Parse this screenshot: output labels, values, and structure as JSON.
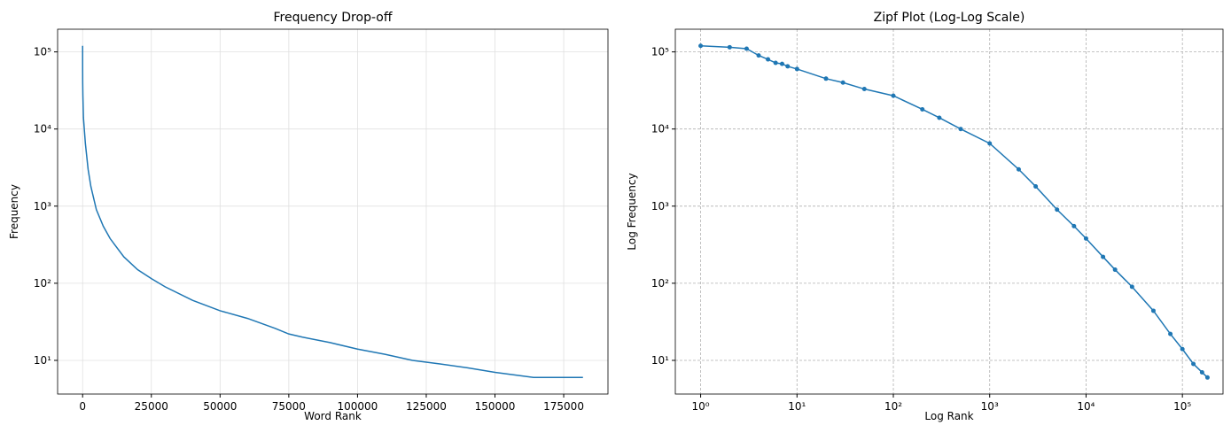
{
  "chart_data": [
    {
      "type": "line",
      "title": "Frequency Drop-off",
      "xlabel": "Word Rank",
      "ylabel": "Frequency",
      "color": "#1f77b4",
      "x": [
        1,
        2,
        3,
        5,
        10,
        30,
        100,
        300,
        1000,
        2000,
        3000,
        5000,
        7500,
        10000,
        15000,
        20000,
        25000,
        30000,
        40000,
        50000,
        60000,
        70000,
        75000,
        80000,
        90000,
        100000,
        110000,
        120000,
        130000,
        140000,
        150000,
        164000,
        182000
      ],
      "values": [
        120000,
        115000,
        110000,
        80000,
        60000,
        40000,
        27000,
        14000,
        6500,
        3000,
        1800,
        900,
        550,
        380,
        220,
        150,
        115,
        90,
        60,
        44,
        35,
        26,
        22,
        20,
        17,
        14,
        12,
        10,
        9,
        8,
        7,
        6,
        6
      ],
      "xlim": [
        -9100,
        191100
      ],
      "xticks": [
        0,
        25000,
        50000,
        75000,
        100000,
        125000,
        150000,
        175000
      ],
      "ylim": [
        3.66,
        196800
      ],
      "ylog": true,
      "yticks": [
        {
          "value": 10,
          "label": "10¹"
        },
        {
          "value": 100,
          "label": "10²"
        },
        {
          "value": 1000,
          "label": "10³"
        },
        {
          "value": 10000,
          "label": "10⁴"
        },
        {
          "value": 100000,
          "label": "10⁵"
        }
      ],
      "grid": "solid"
    },
    {
      "type": "line-markers",
      "title": "Zipf Plot (Log-Log Scale)",
      "xlabel": "Log Rank",
      "ylabel": "Log Frequency",
      "color": "#1f77b4",
      "x": [
        1,
        2,
        3,
        4,
        5,
        6,
        7,
        8,
        10,
        20,
        30,
        50,
        100,
        200,
        300,
        500,
        1000,
        2000,
        3000,
        5000,
        7500,
        10000,
        15000,
        20000,
        30000,
        50000,
        75000,
        100000,
        130000,
        160000,
        182000
      ],
      "values": [
        120000,
        115000,
        110000,
        90000,
        80000,
        72000,
        70000,
        65000,
        60000,
        45000,
        40000,
        33000,
        27000,
        18000,
        14000,
        10000,
        6500,
        3000,
        1800,
        900,
        550,
        380,
        220,
        150,
        90,
        44,
        22,
        14,
        9,
        7,
        6
      ],
      "xlim": [
        0.546,
        264000
      ],
      "xlog": true,
      "xticks": [
        {
          "value": 1,
          "label": "10⁰"
        },
        {
          "value": 10,
          "label": "10¹"
        },
        {
          "value": 100,
          "label": "10²"
        },
        {
          "value": 1000,
          "label": "10³"
        },
        {
          "value": 10000,
          "label": "10⁴"
        },
        {
          "value": 100000,
          "label": "10⁵"
        }
      ],
      "ylim": [
        3.66,
        196800
      ],
      "ylog": true,
      "yticks": [
        {
          "value": 10,
          "label": "10¹"
        },
        {
          "value": 100,
          "label": "10²"
        },
        {
          "value": 1000,
          "label": "10³"
        },
        {
          "value": 10000,
          "label": "10⁴"
        },
        {
          "value": 100000,
          "label": "10⁵"
        }
      ],
      "grid": "dashed"
    }
  ]
}
